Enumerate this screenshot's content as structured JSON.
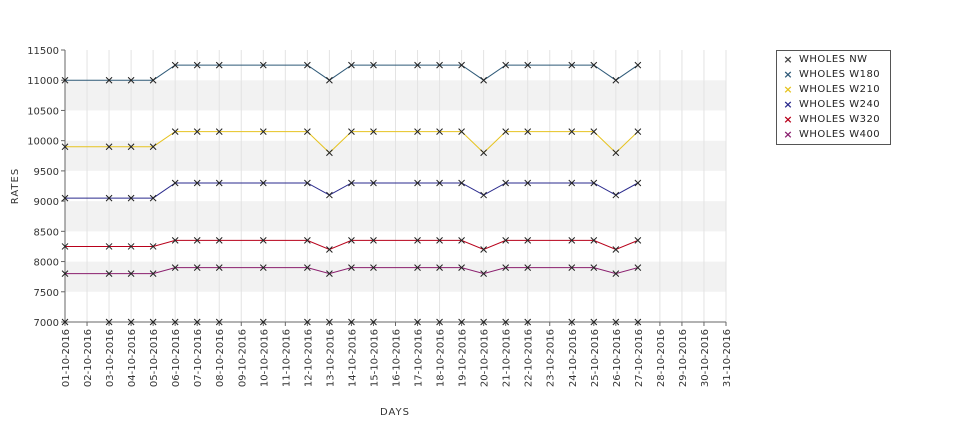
{
  "chart_data": {
    "type": "line",
    "xlabel": "DAYS",
    "ylabel": "RATES",
    "ylim": [
      7000,
      11500
    ],
    "yticks": [
      7000,
      7500,
      8000,
      8500,
      9000,
      9500,
      10000,
      10500,
      11000,
      11500
    ],
    "grid": "alternating horizontal bands",
    "legend_position": "top-right",
    "categories": [
      "01-10-2016",
      "02-10-2016",
      "03-10-2016",
      "04-10-2016",
      "05-10-2016",
      "06-10-2016",
      "07-10-2016",
      "08-10-2016",
      "09-10-2016",
      "10-10-2016",
      "11-10-2016",
      "12-10-2016",
      "13-10-2016",
      "14-10-2016",
      "15-10-2016",
      "16-10-2016",
      "17-10-2016",
      "18-10-2016",
      "19-10-2016",
      "20-10-2016",
      "21-10-2016",
      "22-10-2016",
      "23-10-2016",
      "24-10-2016",
      "25-10-2016",
      "26-10-2016",
      "27-10-2016",
      "28-10-2016",
      "29-10-2016",
      "30-10-2016",
      "31-10-2016"
    ],
    "series": [
      {
        "name": "WHOLES NW",
        "color": "#444444",
        "values": [
          7000,
          null,
          7000,
          7000,
          7000,
          7000,
          7000,
          7000,
          null,
          7000,
          null,
          7000,
          7000,
          7000,
          7000,
          null,
          7000,
          7000,
          7000,
          7000,
          7000,
          7000,
          null,
          7000,
          7000,
          7000,
          7000,
          null,
          null,
          null,
          null
        ]
      },
      {
        "name": "WHOLES W180",
        "color": "#2f5a78",
        "values": [
          11000,
          null,
          11000,
          11000,
          11000,
          11250,
          11250,
          11250,
          null,
          11250,
          null,
          11250,
          11000,
          11250,
          11250,
          null,
          11250,
          11250,
          11250,
          11000,
          11250,
          11250,
          null,
          11250,
          11250,
          11000,
          11250,
          null,
          null,
          null,
          null
        ]
      },
      {
        "name": "WHOLES W210",
        "color": "#e6c320",
        "values": [
          9900,
          null,
          9900,
          9900,
          9900,
          10150,
          10150,
          10150,
          null,
          10150,
          null,
          10150,
          9800,
          10150,
          10150,
          null,
          10150,
          10150,
          10150,
          9800,
          10150,
          10150,
          null,
          10150,
          10150,
          9800,
          10150,
          null,
          null,
          null,
          null
        ]
      },
      {
        "name": "WHOLES W240",
        "color": "#2a2a8c",
        "values": [
          9050,
          null,
          9050,
          9050,
          9050,
          9300,
          9300,
          9300,
          null,
          9300,
          null,
          9300,
          9100,
          9300,
          9300,
          null,
          9300,
          9300,
          9300,
          9100,
          9300,
          9300,
          null,
          9300,
          9300,
          9100,
          9300,
          null,
          null,
          null,
          null
        ]
      },
      {
        "name": "WHOLES W320",
        "color": "#b8001a",
        "values": [
          8250,
          null,
          8250,
          8250,
          8250,
          8350,
          8350,
          8350,
          null,
          8350,
          null,
          8350,
          8200,
          8350,
          8350,
          null,
          8350,
          8350,
          8350,
          8200,
          8350,
          8350,
          null,
          8350,
          8350,
          8200,
          8350,
          null,
          null,
          null,
          null
        ]
      },
      {
        "name": "WHOLES W400",
        "color": "#8a1f6e",
        "values": [
          7800,
          null,
          7800,
          7800,
          7800,
          7900,
          7900,
          7900,
          null,
          7900,
          null,
          7900,
          7800,
          7900,
          7900,
          null,
          7900,
          7900,
          7900,
          7800,
          7900,
          7900,
          null,
          7900,
          7900,
          7800,
          7900,
          null,
          null,
          null,
          null
        ]
      }
    ]
  },
  "legend_marker": "×"
}
